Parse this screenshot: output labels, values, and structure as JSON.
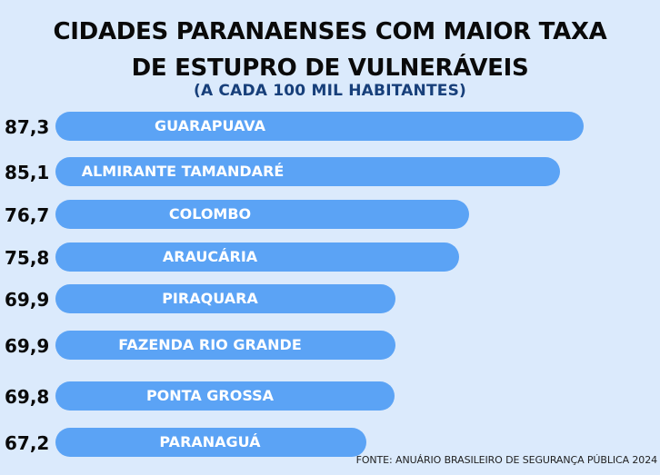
{
  "title_line1": "CIDADES PARANAENSES COM MAIOR TAXA",
  "title_line2": "DE ESTUPRO DE VULNERÁVEIS",
  "subtitle": "(A CADA 100 MIL HABITANTES)",
  "source": "FONTE: ANUÁRIO BRASILEIRO DE SEGURANÇA PÚBLICA 2024",
  "colors": {
    "background": "#dbeafc",
    "bar": "#5ba3f5",
    "bar_label": "#ffffff",
    "value_label": "#0a0a0a"
  },
  "chart_data": {
    "type": "bar",
    "orientation": "horizontal",
    "categories": [
      "GUARAPUAVA",
      "ALMIRANTE TAMANDARÉ",
      "COLOMBO",
      "ARAUCÁRIA",
      "PIRAQUARA",
      "FAZENDA RIO GRANDE",
      "PONTA GROSSA",
      "PARANAGUÁ"
    ],
    "values": [
      87.3,
      85.1,
      76.7,
      75.8,
      69.9,
      69.9,
      69.8,
      67.2
    ],
    "value_labels": [
      "87,3",
      "85,1",
      "76,7",
      "75,8",
      "69,9",
      "69,9",
      "69,8",
      "67,2"
    ],
    "title": "CIDADES PARANAENSES COM MAIOR TAXA DE ESTUPRO DE VULNERÁVEIS",
    "subtitle": "(A CADA 100 MIL HABITANTES)",
    "grid": false,
    "legend": "none"
  }
}
